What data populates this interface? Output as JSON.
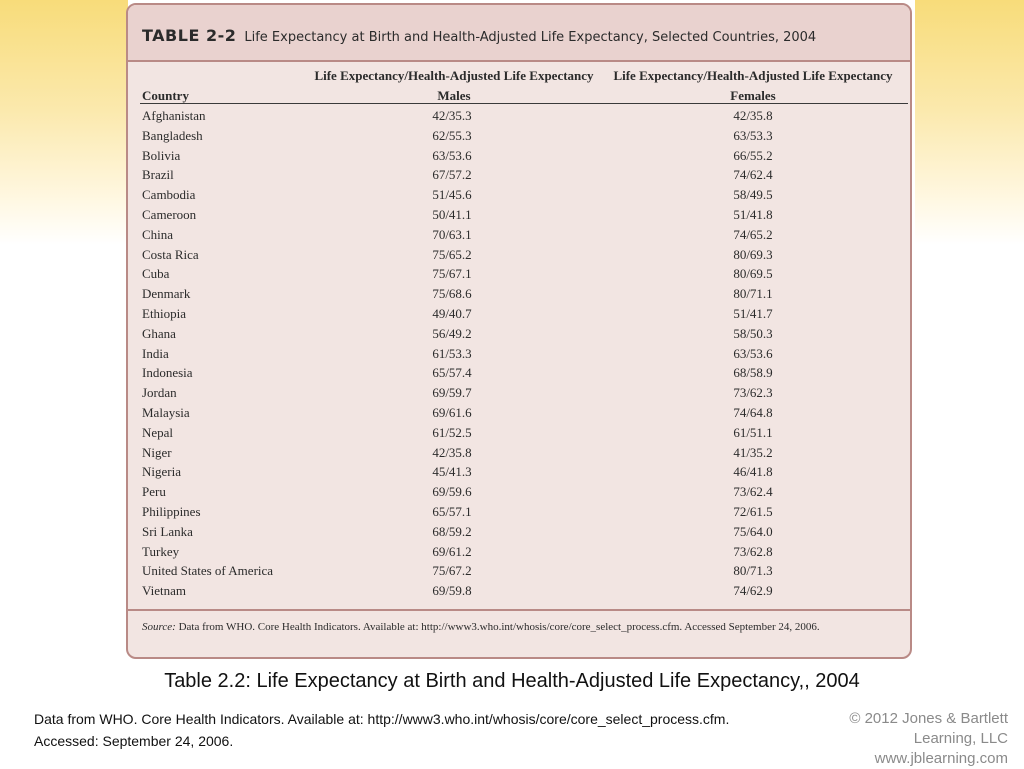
{
  "table": {
    "number": "TABLE 2-2",
    "title": "Life Expectancy at Birth and Health-Adjusted Life Expectancy, Selected Countries, 2004",
    "columns": {
      "country": "Country",
      "males_top": "Life Expectancy/Health-Adjusted Life Expectancy",
      "males_sub": "Males",
      "females_top": "Life Expectancy/Health-Adjusted Life Expectancy",
      "females_sub": "Females"
    },
    "rows": [
      {
        "country": "Afghanistan",
        "males": "42/35.3",
        "females": "42/35.8"
      },
      {
        "country": "Bangladesh",
        "males": "62/55.3",
        "females": "63/53.3"
      },
      {
        "country": "Bolivia",
        "males": "63/53.6",
        "females": "66/55.2"
      },
      {
        "country": "Brazil",
        "males": "67/57.2",
        "females": "74/62.4"
      },
      {
        "country": "Cambodia",
        "males": "51/45.6",
        "females": "58/49.5"
      },
      {
        "country": "Cameroon",
        "males": "50/41.1",
        "females": "51/41.8"
      },
      {
        "country": "China",
        "males": "70/63.1",
        "females": "74/65.2"
      },
      {
        "country": "Costa Rica",
        "males": "75/65.2",
        "females": "80/69.3"
      },
      {
        "country": "Cuba",
        "males": "75/67.1",
        "females": "80/69.5"
      },
      {
        "country": "Denmark",
        "males": "75/68.6",
        "females": "80/71.1"
      },
      {
        "country": "Ethiopia",
        "males": "49/40.7",
        "females": "51/41.7"
      },
      {
        "country": "Ghana",
        "males": "56/49.2",
        "females": "58/50.3"
      },
      {
        "country": "India",
        "males": "61/53.3",
        "females": "63/53.6"
      },
      {
        "country": "Indonesia",
        "males": "65/57.4",
        "females": "68/58.9"
      },
      {
        "country": "Jordan",
        "males": "69/59.7",
        "females": "73/62.3"
      },
      {
        "country": "Malaysia",
        "males": "69/61.6",
        "females": "74/64.8"
      },
      {
        "country": "Nepal",
        "males": "61/52.5",
        "females": "61/51.1"
      },
      {
        "country": "Niger",
        "males": "42/35.8",
        "females": "41/35.2"
      },
      {
        "country": "Nigeria",
        "males": "45/41.3",
        "females": "46/41.8"
      },
      {
        "country": "Peru",
        "males": "69/59.6",
        "females": "73/62.4"
      },
      {
        "country": "Philippines",
        "males": "65/57.1",
        "females": "72/61.5"
      },
      {
        "country": "Sri Lanka",
        "males": "68/59.2",
        "females": "75/64.0"
      },
      {
        "country": "Turkey",
        "males": "69/61.2",
        "females": "73/62.8"
      },
      {
        "country": "United States of America",
        "males": "75/67.2",
        "females": "80/71.3"
      },
      {
        "country": "Vietnam",
        "males": "69/59.8",
        "females": "74/62.9"
      }
    ],
    "source_lead": "Source:",
    "source_text": "Data from WHO. Core Health Indicators. Available at: http://www3.who.int/whosis/core/core_select_process.cfm. Accessed September 24, 2006."
  },
  "caption": "Table 2.2: Life Expectancy at Birth and Health-Adjusted Life Expectancy,, 2004",
  "credit": {
    "line1": "Data from WHO. Core Health Indicators. Available at: http://www3.who.int/whosis/core/core_select_process.cfm.",
    "line2": "Accessed: September 24, 2006."
  },
  "publisher": {
    "name": "© 2012 Jones & Bartlett Learning, LLC",
    "url": "www.jblearning.com"
  }
}
